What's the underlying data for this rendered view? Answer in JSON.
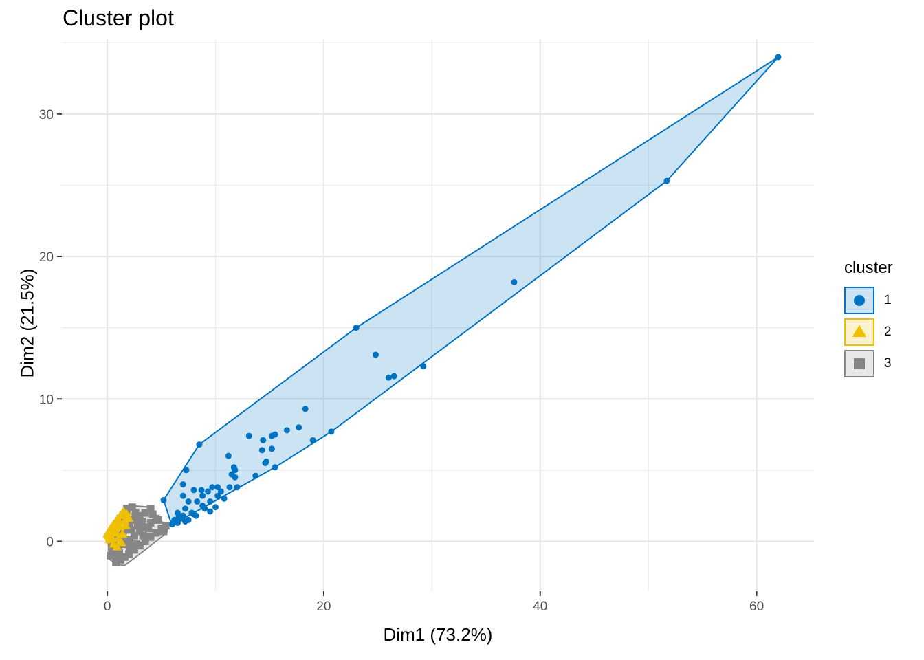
{
  "chart_data": {
    "type": "scatter",
    "title": "Cluster plot",
    "xlabel": "Dim1 (73.2%)",
    "ylabel": "Dim2 (21.5%)",
    "xlim": [
      -4.2,
      65.3
    ],
    "ylim": [
      -3.5,
      35.3
    ],
    "x_ticks": [
      0,
      20,
      40,
      60
    ],
    "y_ticks": [
      0,
      10,
      20,
      30
    ],
    "grid": true,
    "legend": {
      "title": "cluster",
      "placement": "right"
    },
    "colors": {
      "1": "#0073C2",
      "2": "#EFC000",
      "3": "#868686"
    },
    "series": [
      {
        "name": "1",
        "shape": "circle",
        "hull": [
          [
            5.2,
            2.9
          ],
          [
            8.5,
            6.8
          ],
          [
            23,
            15
          ],
          [
            62,
            34
          ],
          [
            51.7,
            25.3
          ],
          [
            20.7,
            7.7
          ],
          [
            15.5,
            5.2
          ],
          [
            8,
            2
          ],
          [
            6,
            1.2
          ],
          [
            5.8,
            1.5
          ]
        ],
        "points": [
          [
            62,
            34
          ],
          [
            51.7,
            25.3
          ],
          [
            37.6,
            18.2
          ],
          [
            23,
            15
          ],
          [
            24.8,
            13.1
          ],
          [
            26,
            11.5
          ],
          [
            26.5,
            11.6
          ],
          [
            29.2,
            12.3
          ],
          [
            18.3,
            9.3
          ],
          [
            17.7,
            8
          ],
          [
            16.6,
            7.8
          ],
          [
            13.1,
            7.4
          ],
          [
            14.4,
            7.1
          ],
          [
            15.2,
            7.4
          ],
          [
            15.5,
            7.5
          ],
          [
            14.3,
            6.4
          ],
          [
            15.2,
            6.5
          ],
          [
            19,
            7.1
          ],
          [
            20.7,
            7.7
          ],
          [
            8.5,
            6.8
          ],
          [
            11.2,
            6
          ],
          [
            11.7,
            5.2
          ],
          [
            11.8,
            5
          ],
          [
            11.5,
            4.7
          ],
          [
            11.8,
            4.5
          ],
          [
            14.6,
            5.5
          ],
          [
            14.7,
            5.6
          ],
          [
            15.5,
            5.2
          ],
          [
            13.7,
            4.6
          ],
          [
            7.3,
            5
          ],
          [
            7,
            4
          ],
          [
            8,
            3.6
          ],
          [
            9.7,
            3.8
          ],
          [
            10.2,
            3.8
          ],
          [
            8.7,
            3.6
          ],
          [
            9.3,
            3.5
          ],
          [
            11.3,
            3.8
          ],
          [
            12,
            3.8
          ],
          [
            10.5,
            3.5
          ],
          [
            10.2,
            3.2
          ],
          [
            10.8,
            3
          ],
          [
            9.5,
            2.8
          ],
          [
            8.8,
            3.2
          ],
          [
            8.3,
            2.8
          ],
          [
            8.8,
            2.5
          ],
          [
            7.5,
            2.8
          ],
          [
            7,
            3.2
          ],
          [
            5.2,
            2.9
          ],
          [
            6.5,
            2
          ],
          [
            7.2,
            2.3
          ],
          [
            7.8,
            2
          ],
          [
            8.2,
            1.8
          ],
          [
            9,
            2.3
          ],
          [
            9.5,
            2.1
          ],
          [
            10,
            2.4
          ],
          [
            6.2,
            1.5
          ],
          [
            6.8,
            1.6
          ],
          [
            7.2,
            1.4
          ],
          [
            6,
            1.2
          ],
          [
            6.5,
            1.3
          ],
          [
            7.5,
            1.5
          ],
          [
            8,
            1.9
          ],
          [
            6.6,
            1.7
          ],
          [
            7,
            1.8
          ]
        ]
      },
      {
        "name": "2",
        "shape": "triangle",
        "hull": [
          [
            -0.3,
            0.4
          ],
          [
            1.6,
            2.3
          ],
          [
            2.4,
            1.8
          ],
          [
            1.2,
            -0.6
          ],
          [
            0.2,
            -0.5
          ]
        ],
        "points": [
          [
            0,
            0.5
          ],
          [
            0.3,
            0.9
          ],
          [
            0.6,
            1.2
          ],
          [
            0.9,
            1.5
          ],
          [
            1.2,
            1.8
          ],
          [
            1.5,
            2.1
          ],
          [
            0.4,
            0.2
          ],
          [
            0.8,
            0.6
          ],
          [
            1.2,
            1
          ],
          [
            1.6,
            1.4
          ],
          [
            2,
            1.6
          ],
          [
            0.6,
            -0.2
          ],
          [
            1,
            0.2
          ],
          [
            1.4,
            0.5
          ],
          [
            0.2,
            0.1
          ],
          [
            0.5,
            0.6
          ],
          [
            1,
            1.1
          ],
          [
            1.8,
            1.9
          ],
          [
            0.9,
            -0.4
          ],
          [
            1.3,
            -0.1
          ],
          [
            0.7,
            0.9
          ],
          [
            1.1,
            1.4
          ],
          [
            0.3,
            0.4
          ],
          [
            1.7,
            1.1
          ]
        ]
      },
      {
        "name": "3",
        "shape": "square",
        "hull": [
          [
            0.8,
            -1.6
          ],
          [
            0.1,
            -1.2
          ],
          [
            0.2,
            -0.2
          ],
          [
            1.6,
            2.4
          ],
          [
            2.4,
            2.5
          ],
          [
            4,
            2.4
          ],
          [
            4.8,
            1.5
          ],
          [
            5.6,
            1.1
          ],
          [
            5.5,
            0.6
          ],
          [
            3.5,
            -0.6
          ],
          [
            1.6,
            -1.7
          ]
        ],
        "points": [
          [
            0.8,
            -1.5
          ],
          [
            1.2,
            -1.3
          ],
          [
            1.6,
            -1.1
          ],
          [
            2,
            -0.9
          ],
          [
            2.5,
            -0.6
          ],
          [
            3,
            -0.3
          ],
          [
            3.5,
            0
          ],
          [
            4,
            0.3
          ],
          [
            4.5,
            0.6
          ],
          [
            5,
            0.9
          ],
          [
            5.4,
            1.1
          ],
          [
            0.5,
            -0.8
          ],
          [
            1,
            -0.5
          ],
          [
            1.5,
            -0.2
          ],
          [
            2,
            0.1
          ],
          [
            2.5,
            0.4
          ],
          [
            3,
            0.7
          ],
          [
            3.5,
            1
          ],
          [
            4,
            1.3
          ],
          [
            4.5,
            1.6
          ],
          [
            0.6,
            0
          ],
          [
            1,
            0.4
          ],
          [
            1.5,
            0.8
          ],
          [
            2,
            1.2
          ],
          [
            2.5,
            1.5
          ],
          [
            3,
            1.8
          ],
          [
            3.5,
            2
          ],
          [
            1.8,
            2.3
          ],
          [
            2.3,
            2.4
          ],
          [
            4,
            2.3
          ],
          [
            4.7,
            1.5
          ],
          [
            1.2,
            1.6
          ],
          [
            0.3,
            -1
          ],
          [
            0.9,
            -1.1
          ],
          [
            2.7,
            -0.2
          ],
          [
            3.3,
            0.4
          ],
          [
            1.4,
            0.1
          ],
          [
            2.2,
            0.8
          ],
          [
            2.8,
            1.1
          ],
          [
            3.8,
            0.9
          ],
          [
            4.2,
            1.9
          ],
          [
            1.7,
            1.9
          ],
          [
            5.2,
            0.7
          ],
          [
            2.1,
            -0.4
          ],
          [
            1.1,
            -0.8
          ],
          [
            3.2,
            1.4
          ],
          [
            2.6,
            2
          ],
          [
            0.4,
            -0.4
          ]
        ]
      }
    ]
  }
}
